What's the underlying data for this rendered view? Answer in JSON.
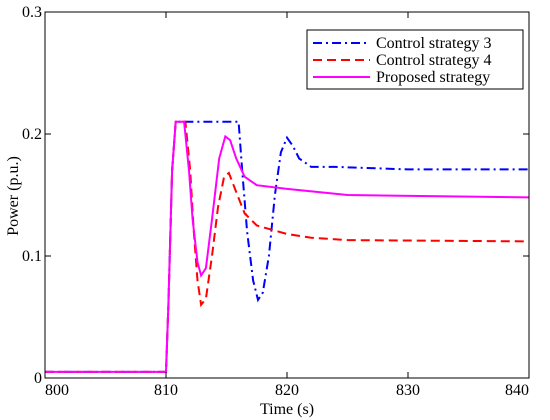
{
  "chart_data": {
    "type": "line",
    "xlabel": "Time (s)",
    "ylabel": "Power (p.u.)",
    "xlim": [
      800,
      840
    ],
    "ylim": [
      0,
      0.3
    ],
    "xticks": [
      800,
      810,
      820,
      830,
      840
    ],
    "yticks": [
      0,
      0.1,
      0.2,
      0.3
    ],
    "xtick_labels": [
      "800",
      "810",
      "820",
      "830",
      "840"
    ],
    "ytick_labels": [
      "0",
      "0.1",
      "0.2",
      "0.3"
    ],
    "grid": false,
    "legend_position": "top-right",
    "series": [
      {
        "name": "Control strategy 3",
        "color": "#0000ff",
        "dash": "dashdot",
        "points": [
          [
            800,
            0.005
          ],
          [
            810,
            0.005
          ],
          [
            810.2,
            0.06
          ],
          [
            810.5,
            0.17
          ],
          [
            810.8,
            0.21
          ],
          [
            816,
            0.21
          ],
          [
            816.3,
            0.17
          ],
          [
            816.7,
            0.12
          ],
          [
            817.2,
            0.08
          ],
          [
            817.6,
            0.064
          ],
          [
            818,
            0.07
          ],
          [
            818.5,
            0.1
          ],
          [
            819,
            0.15
          ],
          [
            819.5,
            0.185
          ],
          [
            820,
            0.197
          ],
          [
            820.5,
            0.19
          ],
          [
            821,
            0.18
          ],
          [
            822,
            0.173
          ],
          [
            824,
            0.173
          ],
          [
            830,
            0.171
          ],
          [
            840,
            0.171
          ]
        ]
      },
      {
        "name": "Control strategy 4",
        "color": "#ff0000",
        "dash": "dashed",
        "points": [
          [
            800,
            0.005
          ],
          [
            810,
            0.005
          ],
          [
            810.2,
            0.06
          ],
          [
            810.5,
            0.17
          ],
          [
            810.8,
            0.21
          ],
          [
            811.6,
            0.21
          ],
          [
            812,
            0.17
          ],
          [
            812.3,
            0.12
          ],
          [
            812.6,
            0.08
          ],
          [
            812.9,
            0.06
          ],
          [
            813.3,
            0.065
          ],
          [
            813.8,
            0.1
          ],
          [
            814.3,
            0.14
          ],
          [
            814.8,
            0.165
          ],
          [
            815.2,
            0.168
          ],
          [
            815.7,
            0.155
          ],
          [
            816.5,
            0.135
          ],
          [
            817.5,
            0.125
          ],
          [
            820,
            0.118
          ],
          [
            822,
            0.115
          ],
          [
            825,
            0.113
          ],
          [
            840,
            0.112
          ]
        ]
      },
      {
        "name": "Proposed strategy",
        "color": "#ff00ff",
        "dash": "solid",
        "points": [
          [
            800,
            0.005
          ],
          [
            810,
            0.005
          ],
          [
            810.2,
            0.06
          ],
          [
            810.5,
            0.17
          ],
          [
            810.8,
            0.21
          ],
          [
            811.5,
            0.21
          ],
          [
            811.9,
            0.17
          ],
          [
            812.2,
            0.13
          ],
          [
            812.6,
            0.095
          ],
          [
            812.9,
            0.084
          ],
          [
            813.3,
            0.09
          ],
          [
            813.8,
            0.13
          ],
          [
            814.4,
            0.18
          ],
          [
            814.9,
            0.198
          ],
          [
            815.3,
            0.195
          ],
          [
            815.8,
            0.18
          ],
          [
            816.5,
            0.165
          ],
          [
            817.5,
            0.158
          ],
          [
            820,
            0.155
          ],
          [
            825,
            0.15
          ],
          [
            840,
            0.148
          ]
        ]
      }
    ]
  }
}
